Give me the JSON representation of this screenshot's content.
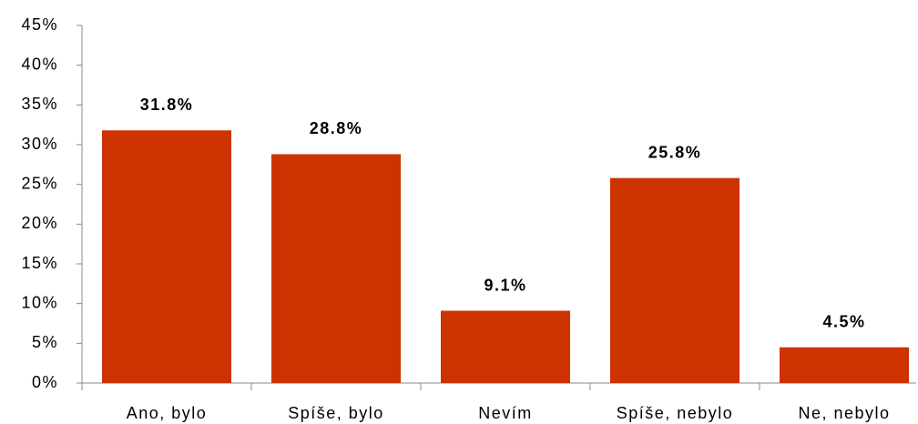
{
  "chart_data": {
    "type": "bar",
    "categories": [
      "Ano, bylo",
      "Spíše, bylo",
      "Nevím",
      "Spíše, nebylo",
      "Ne, nebylo"
    ],
    "values": [
      31.8,
      28.8,
      9.1,
      25.8,
      4.5
    ],
    "value_labels": [
      "31.8%",
      "28.8%",
      "9.1%",
      "25.8%",
      "4.5%"
    ],
    "color": "#cc3300",
    "ylim": [
      0,
      45
    ],
    "yticks": [
      {
        "value": 0,
        "label": "0%"
      },
      {
        "value": 5,
        "label": "5%"
      },
      {
        "value": 10,
        "label": "10%"
      },
      {
        "value": 15,
        "label": "15%"
      },
      {
        "value": 20,
        "label": "20%"
      },
      {
        "value": 25,
        "label": "25%"
      },
      {
        "value": 30,
        "label": "30%"
      },
      {
        "value": 35,
        "label": "35%"
      },
      {
        "value": 40,
        "label": "40%"
      },
      {
        "value": 45,
        "label": "45%"
      }
    ],
    "grid": false
  }
}
